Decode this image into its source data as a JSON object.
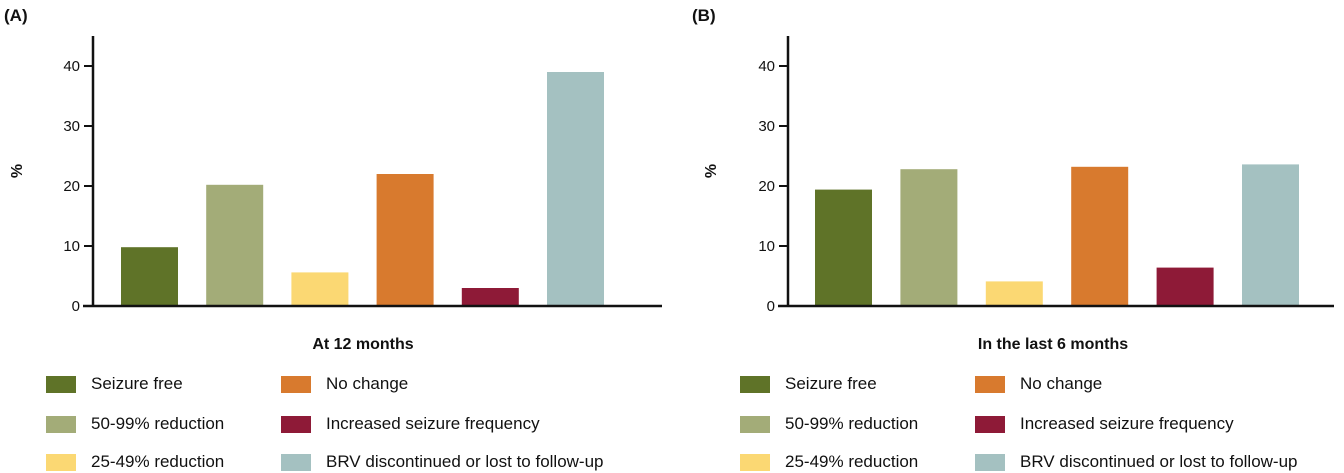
{
  "chart_data": [
    {
      "type": "bar",
      "panel_label": "(A)",
      "xlabel": "At 12 months",
      "ylabel": "%",
      "ylim": [
        0,
        45
      ],
      "yticks": [
        0,
        10,
        20,
        30,
        40
      ],
      "categories": [
        "Seizure free",
        "50-99% reduction",
        "25-49% reduction",
        "No change",
        "Increased seizure frequency",
        "BRV discontinued or lost to follow-up"
      ],
      "values": [
        9.8,
        20.2,
        5.6,
        22.0,
        3.0,
        39.0
      ],
      "colors": [
        "#5f7328",
        "#a3ac78",
        "#fbd873",
        "#d87a2e",
        "#8e1a37",
        "#a4c1c1"
      ],
      "grid": false,
      "legend_position": "bottom"
    },
    {
      "type": "bar",
      "panel_label": "(B)",
      "xlabel": "In the last 6 months",
      "ylabel": "%",
      "ylim": [
        0,
        45
      ],
      "yticks": [
        0,
        10,
        20,
        30,
        40
      ],
      "categories": [
        "Seizure free",
        "50-99% reduction",
        "25-49% reduction",
        "No change",
        "Increased seizure frequency",
        "BRV discontinued or lost to follow-up"
      ],
      "values": [
        19.4,
        22.8,
        4.1,
        23.2,
        6.4,
        23.6
      ],
      "colors": [
        "#5f7328",
        "#a3ac78",
        "#fbd873",
        "#d87a2e",
        "#8e1a37",
        "#a4c1c1"
      ],
      "grid": false,
      "legend_position": "bottom"
    }
  ],
  "legend": {
    "items": [
      {
        "label": "Seizure free",
        "color": "#5f7328"
      },
      {
        "label": "50-99% reduction",
        "color": "#a3ac78"
      },
      {
        "label": "25-49% reduction",
        "color": "#fbd873"
      },
      {
        "label": "No change",
        "color": "#d87a2e"
      },
      {
        "label": "Increased seizure frequency",
        "color": "#8e1a37"
      },
      {
        "label": "BRV discontinued or lost to follow-up",
        "color": "#a4c1c1"
      }
    ]
  }
}
